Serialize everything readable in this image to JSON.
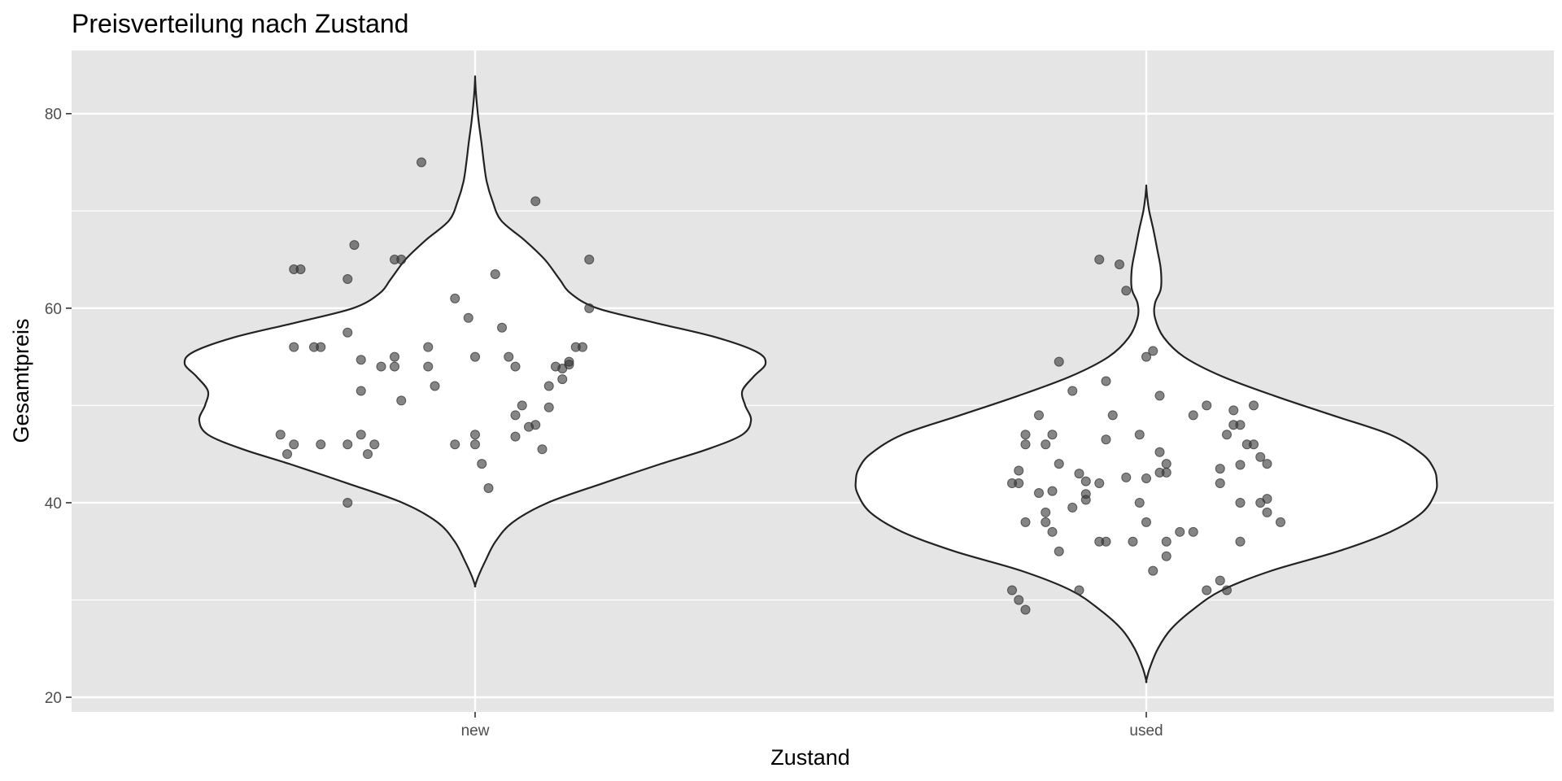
{
  "chart_data": {
    "type": "violin",
    "title": "Preisverteilung nach Zustand",
    "xlabel": "Zustand",
    "ylabel": "Gesamtpreis",
    "categories": [
      "new",
      "used"
    ],
    "ylim": [
      18.5,
      86.5
    ],
    "yticks": [
      20,
      40,
      60,
      80
    ],
    "grid": true,
    "colors": {
      "panel": "#e5e5e5",
      "grid": "#ffffff",
      "violin_fill": "#ffffff",
      "violin_stroke": "#222222",
      "point": "#333333"
    },
    "series": [
      {
        "category": "new",
        "y_range": [
          31.5,
          83.7
        ],
        "density_profile": [
          [
            31.5,
            0.0
          ],
          [
            32.5,
            0.012
          ],
          [
            34,
            0.035
          ],
          [
            36,
            0.07
          ],
          [
            38,
            0.13
          ],
          [
            40,
            0.25
          ],
          [
            42,
            0.44
          ],
          [
            44,
            0.64
          ],
          [
            45.5,
            0.8
          ],
          [
            47,
            0.92
          ],
          [
            48.5,
            0.95
          ],
          [
            50,
            0.93
          ],
          [
            51.5,
            0.92
          ],
          [
            53,
            0.96
          ],
          [
            54.3,
            1.0
          ],
          [
            55.5,
            0.97
          ],
          [
            57,
            0.83
          ],
          [
            58.5,
            0.62
          ],
          [
            60,
            0.42
          ],
          [
            61.5,
            0.33
          ],
          [
            63,
            0.29
          ],
          [
            65,
            0.24
          ],
          [
            67,
            0.17
          ],
          [
            69,
            0.09
          ],
          [
            71,
            0.06
          ],
          [
            73,
            0.04
          ],
          [
            75,
            0.03
          ],
          [
            77,
            0.022
          ],
          [
            79,
            0.013
          ],
          [
            81,
            0.006
          ],
          [
            82.5,
            0.002
          ],
          [
            83.7,
            0.0
          ]
        ],
        "points": [
          [
            0.92,
            75
          ],
          [
            1.09,
            71
          ],
          [
            0.82,
            66.5
          ],
          [
            0.73,
            64
          ],
          [
            0.74,
            64
          ],
          [
            0.88,
            65
          ],
          [
            0.89,
            65
          ],
          [
            1.17,
            65
          ],
          [
            0.81,
            63
          ],
          [
            1.03,
            63.5
          ],
          [
            0.97,
            61
          ],
          [
            0.99,
            59
          ],
          [
            1.04,
            58
          ],
          [
            1.17,
            60
          ],
          [
            0.81,
            57.5
          ],
          [
            0.73,
            56
          ],
          [
            0.76,
            56
          ],
          [
            0.77,
            56
          ],
          [
            0.93,
            56
          ],
          [
            1.16,
            56
          ],
          [
            1.15,
            56
          ],
          [
            0.83,
            54.7
          ],
          [
            0.86,
            54
          ],
          [
            0.88,
            54
          ],
          [
            0.88,
            55
          ],
          [
            0.93,
            54
          ],
          [
            1.0,
            55
          ],
          [
            1.05,
            55
          ],
          [
            1.06,
            54
          ],
          [
            1.12,
            54
          ],
          [
            1.13,
            53.8
          ],
          [
            1.14,
            54.2
          ],
          [
            1.14,
            54.5
          ],
          [
            1.13,
            52.7
          ],
          [
            0.83,
            51.5
          ],
          [
            0.94,
            52
          ],
          [
            1.11,
            52
          ],
          [
            0.89,
            50.5
          ],
          [
            1.07,
            50
          ],
          [
            1.11,
            49.8
          ],
          [
            1.09,
            48
          ],
          [
            1.06,
            49
          ],
          [
            1.08,
            47.8
          ],
          [
            0.71,
            47
          ],
          [
            0.83,
            47
          ],
          [
            1.0,
            47
          ],
          [
            1.06,
            46.8
          ],
          [
            0.73,
            46
          ],
          [
            0.77,
            46
          ],
          [
            0.81,
            46
          ],
          [
            0.85,
            46
          ],
          [
            0.97,
            46
          ],
          [
            1.0,
            46
          ],
          [
            1.1,
            45.5
          ],
          [
            0.72,
            45
          ],
          [
            0.84,
            45
          ],
          [
            1.01,
            44
          ],
          [
            1.02,
            41.5
          ],
          [
            0.81,
            40
          ]
        ]
      },
      {
        "category": "used",
        "y_range": [
          21.7,
          72.5
        ],
        "density_profile": [
          [
            21.7,
            0.0
          ],
          [
            23,
            0.012
          ],
          [
            25,
            0.04
          ],
          [
            27,
            0.085
          ],
          [
            29,
            0.16
          ],
          [
            31,
            0.26
          ],
          [
            33,
            0.43
          ],
          [
            35,
            0.66
          ],
          [
            37,
            0.84
          ],
          [
            39,
            0.95
          ],
          [
            41,
            0.995
          ],
          [
            42.3,
            1.0
          ],
          [
            43.5,
            0.99
          ],
          [
            45,
            0.95
          ],
          [
            47,
            0.84
          ],
          [
            49,
            0.64
          ],
          [
            51,
            0.44
          ],
          [
            53,
            0.26
          ],
          [
            55,
            0.13
          ],
          [
            57,
            0.06
          ],
          [
            59,
            0.03
          ],
          [
            60.5,
            0.03
          ],
          [
            62,
            0.05
          ],
          [
            64,
            0.05
          ],
          [
            66,
            0.038
          ],
          [
            68,
            0.025
          ],
          [
            70,
            0.01
          ],
          [
            71.5,
            0.003
          ],
          [
            72.5,
            0.0
          ]
        ],
        "points": [
          [
            1.93,
            65
          ],
          [
            1.96,
            64.5
          ],
          [
            1.97,
            61.8
          ],
          [
            1.87,
            54.5
          ],
          [
            2.01,
            55.6
          ],
          [
            2.0,
            55
          ],
          [
            2.02,
            51
          ],
          [
            2.0,
            42.5
          ],
          [
            1.89,
            51.5
          ],
          [
            2.09,
            50
          ],
          [
            2.16,
            50
          ],
          [
            2.13,
            49.5
          ],
          [
            1.84,
            49
          ],
          [
            1.95,
            49
          ],
          [
            1.94,
            52.5
          ],
          [
            1.99,
            47
          ],
          [
            2.02,
            45.2
          ],
          [
            2.07,
            49
          ],
          [
            1.82,
            47
          ],
          [
            1.86,
            47
          ],
          [
            1.94,
            46.5
          ],
          [
            1.82,
            46
          ],
          [
            1.85,
            46
          ],
          [
            2.12,
            47
          ],
          [
            2.13,
            48
          ],
          [
            2.14,
            48
          ],
          [
            2.15,
            46
          ],
          [
            2.16,
            46
          ],
          [
            2.17,
            44.7
          ],
          [
            1.87,
            44
          ],
          [
            1.9,
            43
          ],
          [
            1.93,
            42
          ],
          [
            1.81,
            43.3
          ],
          [
            1.86,
            41.2
          ],
          [
            1.91,
            42.2
          ],
          [
            1.97,
            42.6
          ],
          [
            2.02,
            43.1
          ],
          [
            2.03,
            43.1
          ],
          [
            2.03,
            44
          ],
          [
            2.11,
            43.5
          ],
          [
            2.14,
            43.9
          ],
          [
            2.18,
            44
          ],
          [
            1.8,
            42
          ],
          [
            1.81,
            42
          ],
          [
            1.84,
            41
          ],
          [
            1.91,
            40.9
          ],
          [
            1.91,
            40.3
          ],
          [
            1.99,
            40
          ],
          [
            2.11,
            42
          ],
          [
            2.14,
            40
          ],
          [
            2.17,
            40
          ],
          [
            2.18,
            40.4
          ],
          [
            2.18,
            39
          ],
          [
            2.2,
            38
          ],
          [
            1.85,
            39
          ],
          [
            1.85,
            38
          ],
          [
            1.82,
            38
          ],
          [
            1.89,
            39.5
          ],
          [
            1.86,
            37
          ],
          [
            2.0,
            38
          ],
          [
            2.05,
            37
          ],
          [
            2.07,
            37
          ],
          [
            1.93,
            36
          ],
          [
            1.94,
            36
          ],
          [
            1.98,
            36
          ],
          [
            2.03,
            36
          ],
          [
            2.14,
            36
          ],
          [
            1.87,
            35
          ],
          [
            2.03,
            34.5
          ],
          [
            2.01,
            33
          ],
          [
            1.8,
            31
          ],
          [
            1.9,
            31
          ],
          [
            2.09,
            31
          ],
          [
            2.11,
            32
          ],
          [
            2.12,
            31
          ],
          [
            1.81,
            30
          ],
          [
            1.82,
            29
          ]
        ]
      }
    ]
  }
}
